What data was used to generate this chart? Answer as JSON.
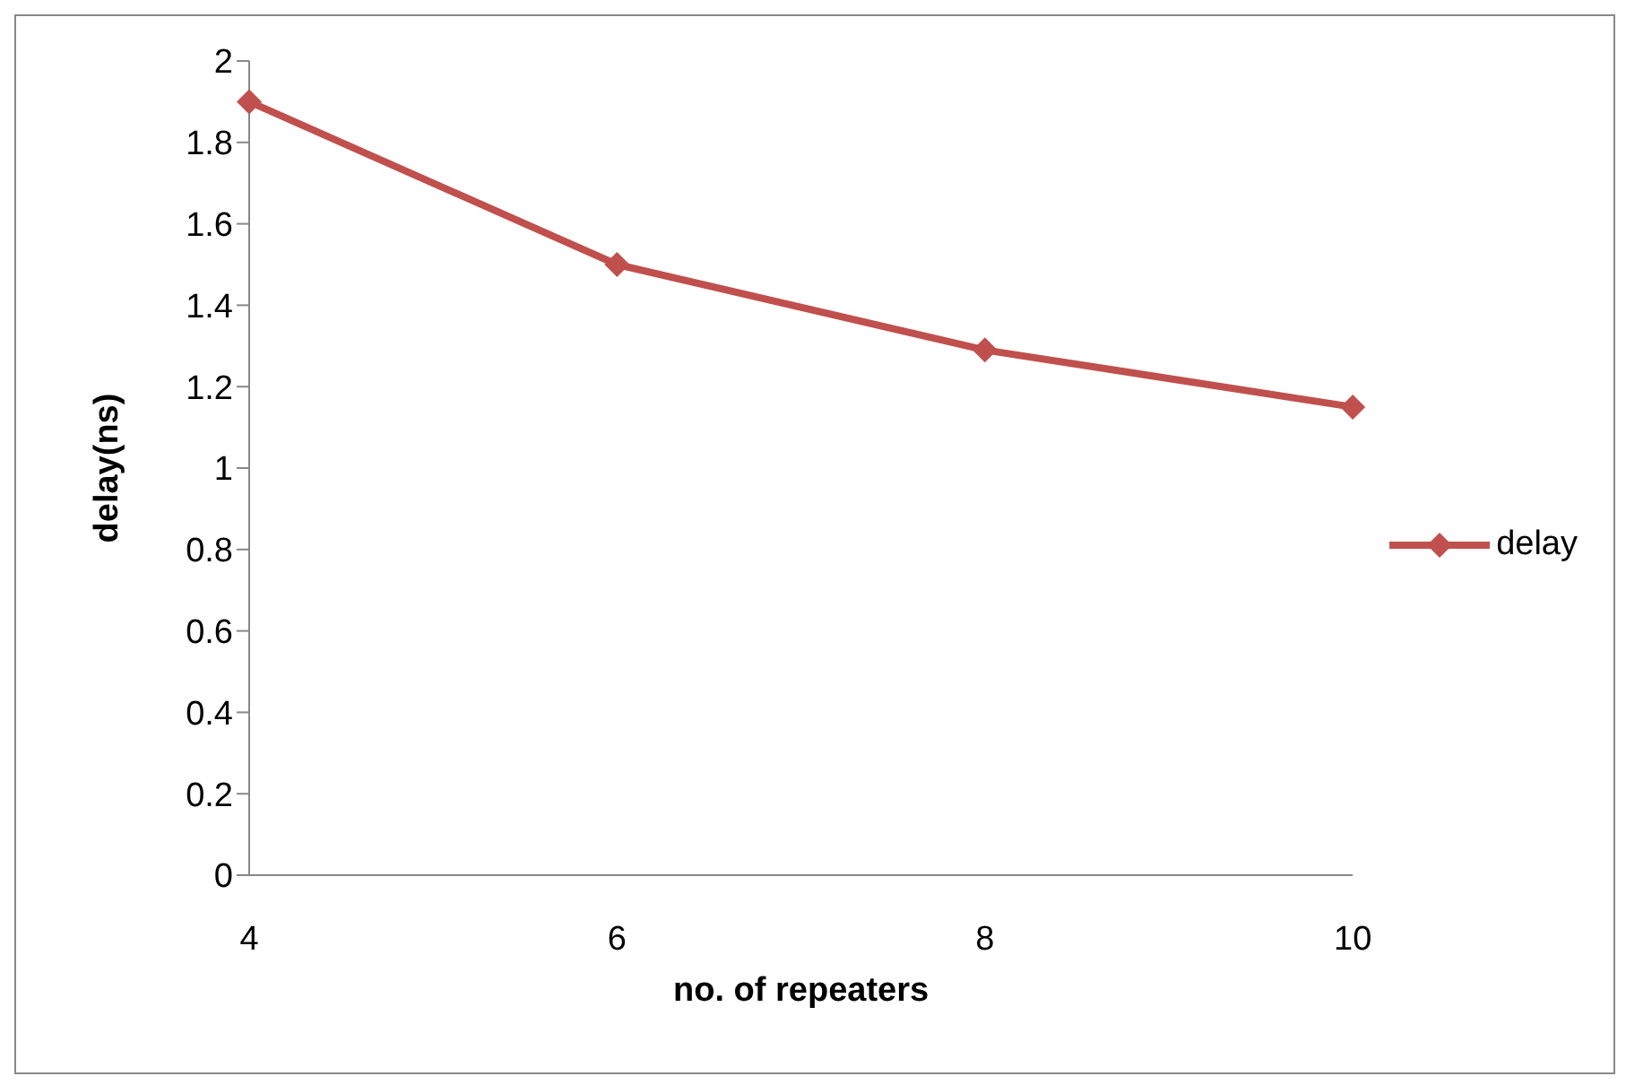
{
  "chart_data": {
    "type": "line",
    "xlabel": "no. of repeaters",
    "ylabel": "delay(ns)",
    "categories": [
      "4",
      "6",
      "8",
      "10"
    ],
    "series": [
      {
        "name": "delay",
        "color": "#c0504d",
        "values": [
          1.9,
          1.5,
          1.29,
          1.15
        ]
      }
    ],
    "ylim": [
      0,
      2
    ],
    "yticks": [
      0,
      0.2,
      0.4,
      0.6,
      0.8,
      1,
      1.2,
      1.4,
      1.6,
      1.8,
      2
    ],
    "grid": false,
    "legend": "right",
    "marker": "diamond",
    "line_style": "solid"
  }
}
